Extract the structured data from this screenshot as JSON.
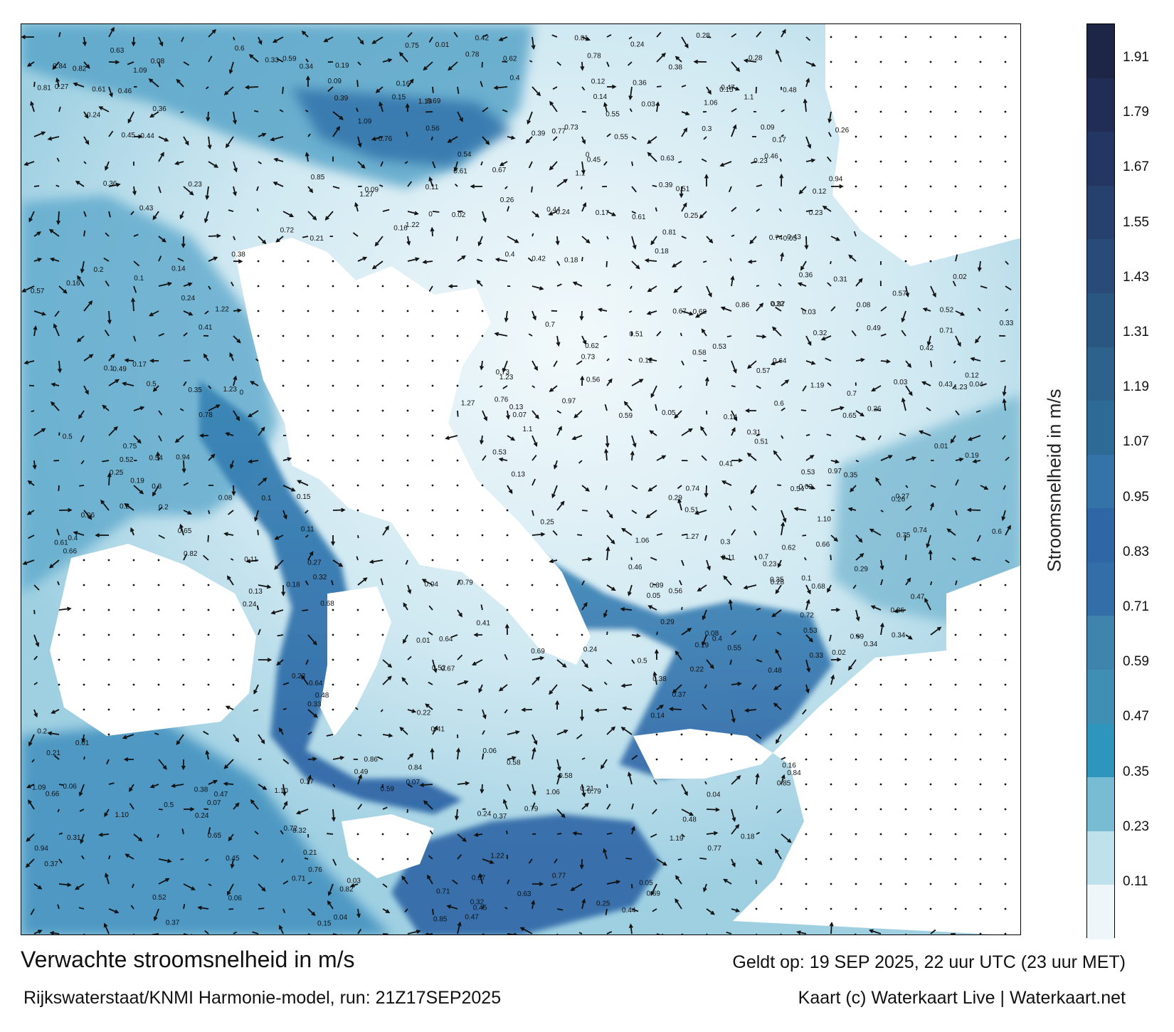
{
  "title": "Verwachte stroomsnelheid in m/s",
  "valid_time": "Geldt op: 19 SEP 2025, 22 uur UTC (23 uur MET)",
  "model_run": "Rijkswaterstaat/KNMI Harmonie-model, run: 21Z17SEP2025",
  "credit": "Kaart (c) Waterkaart Live | Waterkaart.net",
  "colorbar": {
    "label": "Stroomsnelheid in m/s",
    "ticks": [
      "1.91",
      "1.79",
      "1.67",
      "1.55",
      "1.43",
      "1.31",
      "1.19",
      "1.07",
      "0.95",
      "0.83",
      "0.71",
      "0.59",
      "0.47",
      "0.35",
      "0.23",
      "0.11"
    ],
    "colors": [
      "#1e2648",
      "#222d55",
      "#243762",
      "#26416e",
      "#284b78",
      "#2a5782",
      "#2c628b",
      "#2e6a96",
      "#3373a8",
      "#2f66a6",
      "#346ea8",
      "#3f84ad",
      "#3e8fb3",
      "#2e95bd",
      "#78bcd4",
      "#bfe1ec",
      "#eef6f9"
    ]
  },
  "map": {
    "water_color_low": "#e8f4f8",
    "water_color_mid": "#6fb3cf",
    "water_color_high": "#2f66a6",
    "land_color": "#ffffff",
    "speed_labels": [
      {
        "t": "0.19"
      },
      {
        "t": "0.2"
      },
      {
        "t": "0.17"
      },
      {
        "t": "0.32"
      },
      {
        "t": "0.15"
      },
      {
        "t": "0.11"
      },
      {
        "t": "0.14"
      },
      {
        "t": "0.18"
      },
      {
        "t": "0.25"
      },
      {
        "t": "0.21"
      },
      {
        "t": "0.24"
      },
      {
        "t": "0.22"
      },
      {
        "t": "0.16"
      },
      {
        "t": "0.1"
      },
      {
        "t": "0.09"
      },
      {
        "t": "0.23"
      },
      {
        "t": "0.26"
      },
      {
        "t": "0.37"
      },
      {
        "t": "0.33"
      },
      {
        "t": "0.41"
      },
      {
        "t": "0.45"
      },
      {
        "t": "0.4"
      },
      {
        "t": "0.38"
      },
      {
        "t": "0.36"
      },
      {
        "t": "0.39"
      },
      {
        "t": "0.52"
      },
      {
        "t": "0.5"
      },
      {
        "t": "0.47"
      },
      {
        "t": "0.53"
      },
      {
        "t": "0.48"
      },
      {
        "t": "0.51"
      },
      {
        "t": "0.61"
      },
      {
        "t": "0.24"
      },
      {
        "t": "0.12"
      },
      {
        "t": "0.08"
      },
      {
        "t": "0.07"
      },
      {
        "t": "0.06"
      },
      {
        "t": "0.05"
      },
      {
        "t": "0.04"
      },
      {
        "t": "0.03"
      },
      {
        "t": "0.02"
      },
      {
        "t": "0.01"
      },
      {
        "t": "0"
      },
      {
        "t": "0.13"
      },
      {
        "t": "0.27"
      },
      {
        "t": "0.29"
      },
      {
        "t": "0.28"
      },
      {
        "t": "0.35"
      },
      {
        "t": "0.34"
      },
      {
        "t": "0.94"
      },
      {
        "t": "1.10"
      },
      {
        "t": "0.84"
      },
      {
        "t": "0.58"
      },
      {
        "t": "0.49"
      },
      {
        "t": "0.65"
      },
      {
        "t": "0.71"
      },
      {
        "t": "0.75"
      },
      {
        "t": "0.74"
      },
      {
        "t": "0.78"
      },
      {
        "t": "0.86"
      },
      {
        "t": "0.82"
      },
      {
        "t": "0.63"
      },
      {
        "t": "0.62"
      },
      {
        "t": "0.72"
      },
      {
        "t": "0.68"
      },
      {
        "t": "0.66"
      },
      {
        "t": "0.55"
      },
      {
        "t": "0.57"
      },
      {
        "t": "0.54"
      },
      {
        "t": "0.73"
      },
      {
        "t": "0.6"
      },
      {
        "t": "0.44"
      },
      {
        "t": "0.42"
      },
      {
        "t": "0.43"
      },
      {
        "t": "0.46"
      },
      {
        "t": "0.31"
      },
      {
        "t": "0.3"
      },
      {
        "t": "1.06"
      },
      {
        "t": "1.1"
      },
      {
        "t": "1.09"
      },
      {
        "t": "1.22"
      },
      {
        "t": "1.23"
      },
      {
        "t": "1.27"
      },
      {
        "t": "1.19"
      },
      {
        "t": "0.97"
      },
      {
        "t": "0.81"
      },
      {
        "t": "0.77"
      },
      {
        "t": "0.7"
      },
      {
        "t": "0.64"
      },
      {
        "t": "0.67"
      },
      {
        "t": "0.56"
      },
      {
        "t": "0.59"
      },
      {
        "t": "0.79"
      },
      {
        "t": "0.69"
      },
      {
        "t": "0.76"
      },
      {
        "t": "0.85"
      }
    ]
  }
}
